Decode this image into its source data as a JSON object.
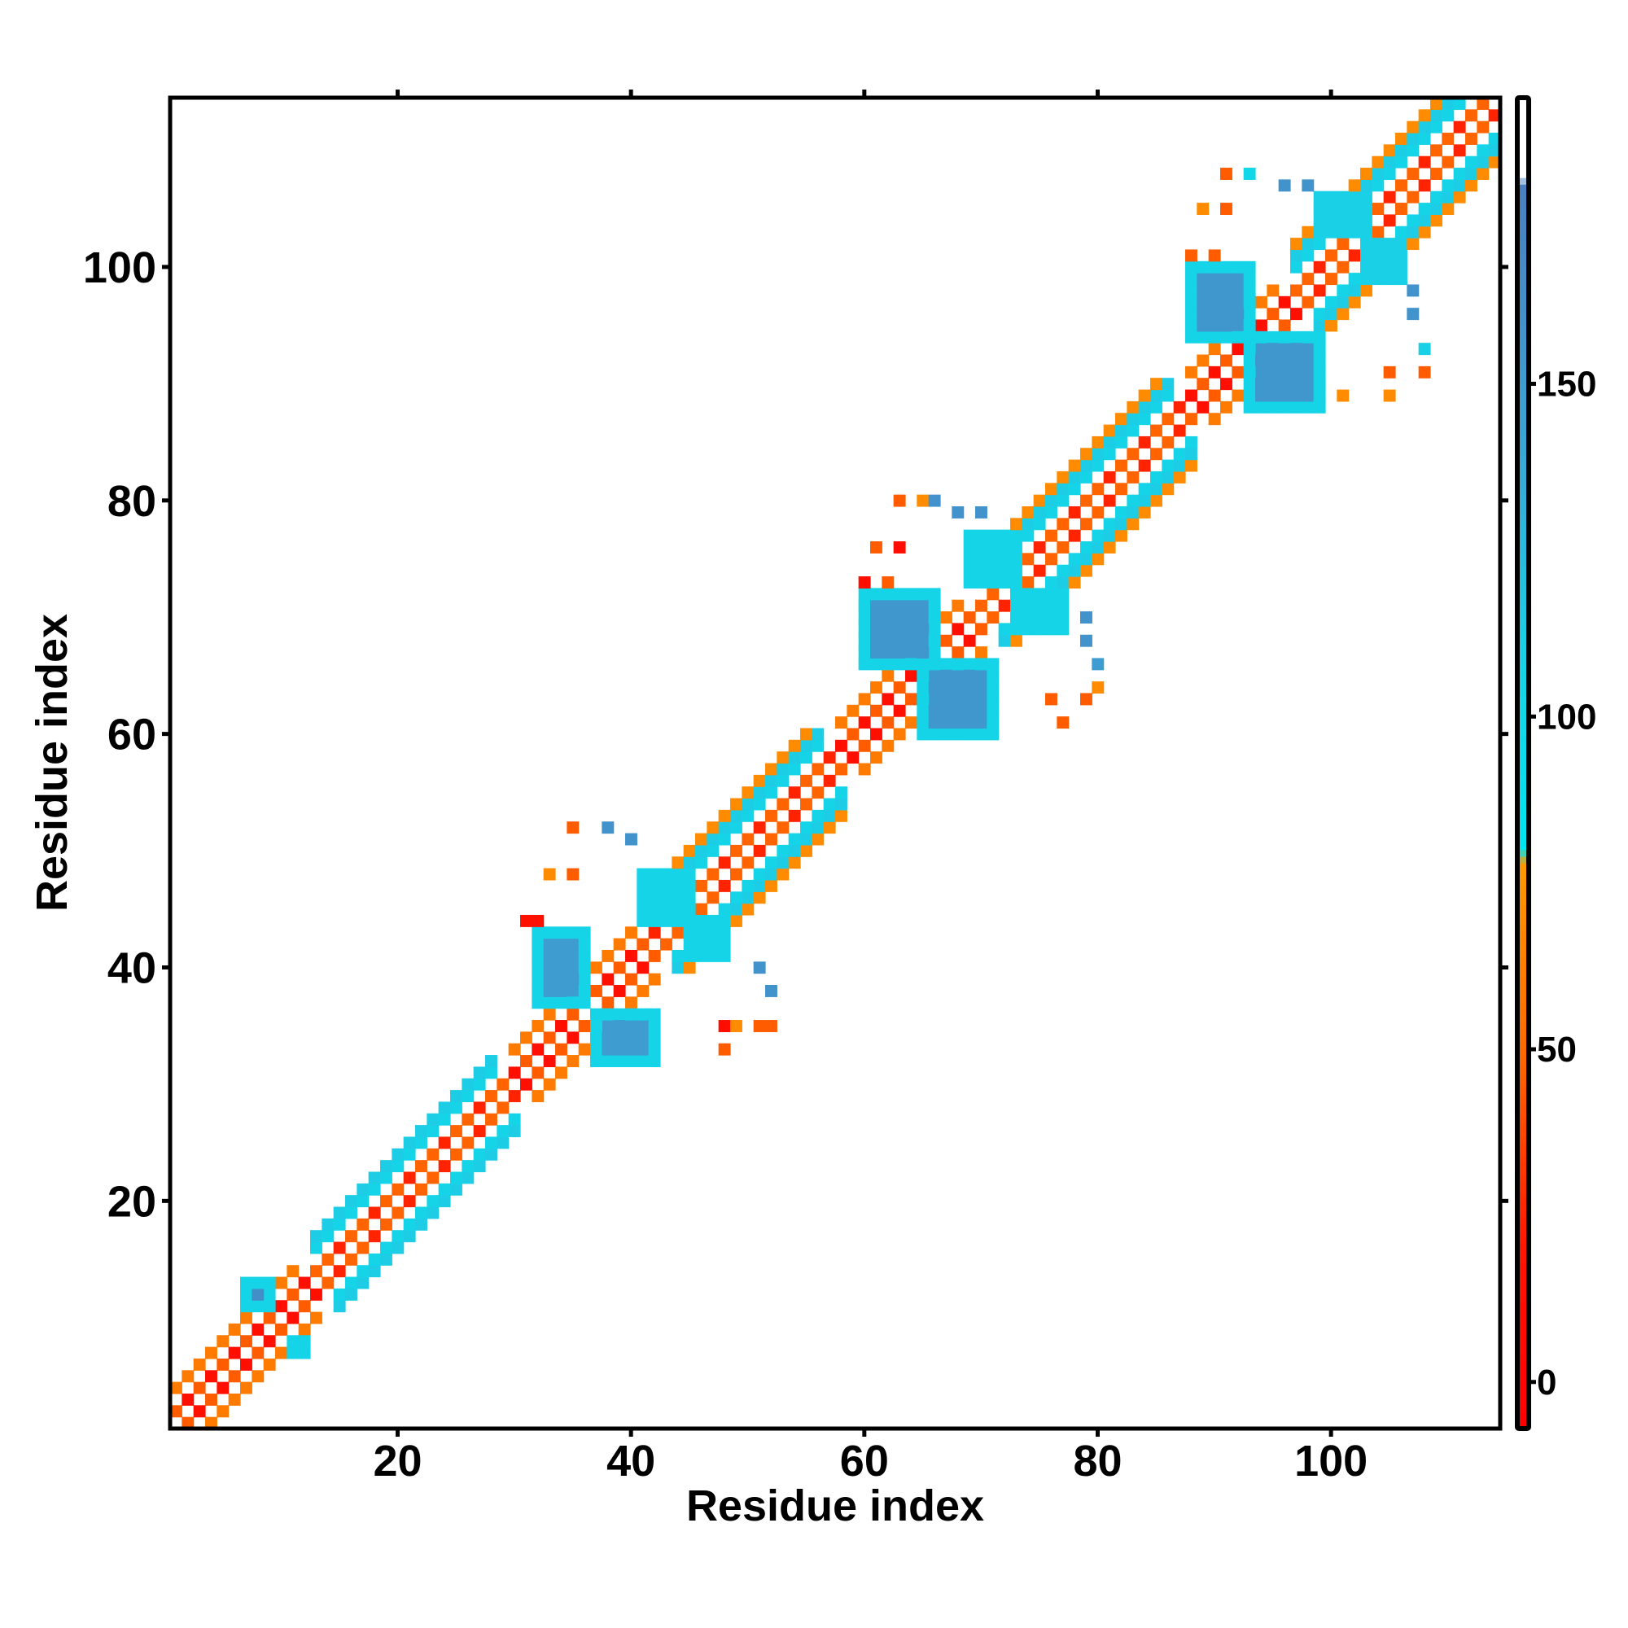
{
  "chart_data": {
    "type": "heatmap",
    "title": "",
    "xlabel": "Residue index",
    "ylabel": "Residue index",
    "xlim": [
      0.5,
      114.5
    ],
    "ylim": [
      0.5,
      114.5
    ],
    "n_residues": 114,
    "x_ticks": [
      20,
      40,
      60,
      80,
      100
    ],
    "y_ticks": [
      20,
      40,
      60,
      80,
      100
    ],
    "x_tick_labels": [
      "20",
      "40",
      "60",
      "80",
      "100"
    ],
    "y_tick_labels": [
      "20",
      "40",
      "60",
      "80",
      "100"
    ],
    "colorbar": {
      "range": [
        -7,
        193
      ],
      "ticks": [
        0,
        50,
        100,
        150
      ],
      "tick_labels": [
        "0",
        "50",
        "100",
        "150"
      ],
      "stops": [
        {
          "value": -7,
          "color": "#ff0000"
        },
        {
          "value": 20,
          "color": "#ff1500"
        },
        {
          "value": 50,
          "color": "#ff6a00"
        },
        {
          "value": 78,
          "color": "#ff9a00"
        },
        {
          "value": 80,
          "color": "#00e5f0"
        },
        {
          "value": 110,
          "color": "#1ad0e6"
        },
        {
          "value": 140,
          "color": "#3aa6d6"
        },
        {
          "value": 180,
          "color": "#4a7fc0"
        },
        {
          "value": 181,
          "color": "#ffffff"
        }
      ]
    },
    "band_segments": [
      {
        "start": 1,
        "end": 13,
        "type": "strand",
        "halfwidth": 3
      },
      {
        "start": 13,
        "end": 30,
        "type": "helix",
        "halfwidth": 4
      },
      {
        "start": 30,
        "end": 42,
        "type": "strand",
        "halfwidth": 3
      },
      {
        "start": 42,
        "end": 58,
        "type": "helix",
        "halfwidth": 5
      },
      {
        "start": 58,
        "end": 70,
        "type": "strand",
        "halfwidth": 3
      },
      {
        "start": 70,
        "end": 88,
        "type": "helix",
        "halfwidth": 5
      },
      {
        "start": 88,
        "end": 97,
        "type": "strand",
        "halfwidth": 3
      },
      {
        "start": 97,
        "end": 114,
        "type": "helix",
        "halfwidth": 5
      }
    ],
    "blobs": [
      {
        "x": [
          7,
          9
        ],
        "y": [
          11,
          13
        ],
        "value": 165
      },
      {
        "x": [
          11,
          12
        ],
        "y": [
          7,
          8
        ],
        "value": 165
      },
      {
        "x": [
          32,
          36
        ],
        "y": [
          37,
          43
        ],
        "value": 150
      },
      {
        "x": [
          37,
          42
        ],
        "y": [
          32,
          36
        ],
        "value": 150
      },
      {
        "x": [
          60,
          66
        ],
        "y": [
          66,
          72
        ],
        "value": 155
      },
      {
        "x": [
          65,
          71
        ],
        "y": [
          60,
          66
        ],
        "value": 155
      },
      {
        "x": [
          88,
          93
        ],
        "y": [
          94,
          100
        ],
        "value": 155
      },
      {
        "x": [
          93,
          99
        ],
        "y": [
          88,
          94
        ],
        "value": 155
      },
      {
        "x": [
          41,
          45
        ],
        "y": [
          44,
          48
        ],
        "value": 105
      },
      {
        "x": [
          45,
          48
        ],
        "y": [
          41,
          44
        ],
        "value": 105
      },
      {
        "x": [
          69,
          73
        ],
        "y": [
          73,
          77
        ],
        "value": 105
      },
      {
        "x": [
          73,
          77
        ],
        "y": [
          69,
          72
        ],
        "value": 105
      },
      {
        "x": [
          99,
          103
        ],
        "y": [
          103,
          106
        ],
        "value": 110
      },
      {
        "x": [
          103,
          106
        ],
        "y": [
          99,
          102
        ],
        "value": 110
      }
    ],
    "outliers": [
      [
        35,
        52,
        45
      ],
      [
        35,
        48,
        45
      ],
      [
        33,
        48,
        70
      ],
      [
        38,
        52,
        160
      ],
      [
        40,
        51,
        160
      ],
      [
        31,
        44,
        15
      ],
      [
        32,
        44,
        15
      ],
      [
        48,
        35,
        10
      ],
      [
        49,
        35,
        70
      ],
      [
        51,
        35,
        45
      ],
      [
        52,
        35,
        45
      ],
      [
        51,
        40,
        160
      ],
      [
        52,
        38,
        160
      ],
      [
        48,
        33,
        45
      ],
      [
        63,
        80,
        45
      ],
      [
        65,
        80,
        70
      ],
      [
        66,
        80,
        160
      ],
      [
        68,
        79,
        160
      ],
      [
        70,
        79,
        160
      ],
      [
        61,
        76,
        45
      ],
      [
        63,
        76,
        10
      ],
      [
        60,
        73,
        10
      ],
      [
        62,
        73,
        45
      ],
      [
        79,
        70,
        160
      ],
      [
        79,
        68,
        160
      ],
      [
        80,
        66,
        150
      ],
      [
        80,
        64,
        70
      ],
      [
        76,
        63,
        45
      ],
      [
        77,
        61,
        45
      ],
      [
        79,
        63,
        45
      ],
      [
        91,
        108,
        45
      ],
      [
        93,
        108,
        100
      ],
      [
        89,
        105,
        70
      ],
      [
        91,
        105,
        45
      ],
      [
        88,
        101,
        45
      ],
      [
        90,
        101,
        45
      ],
      [
        96,
        107,
        160
      ],
      [
        98,
        107,
        160
      ],
      [
        107,
        98,
        160
      ],
      [
        107,
        96,
        160
      ],
      [
        108,
        93,
        110
      ],
      [
        105,
        91,
        45
      ],
      [
        108,
        91,
        45
      ],
      [
        101,
        89,
        70
      ],
      [
        105,
        89,
        70
      ]
    ]
  }
}
